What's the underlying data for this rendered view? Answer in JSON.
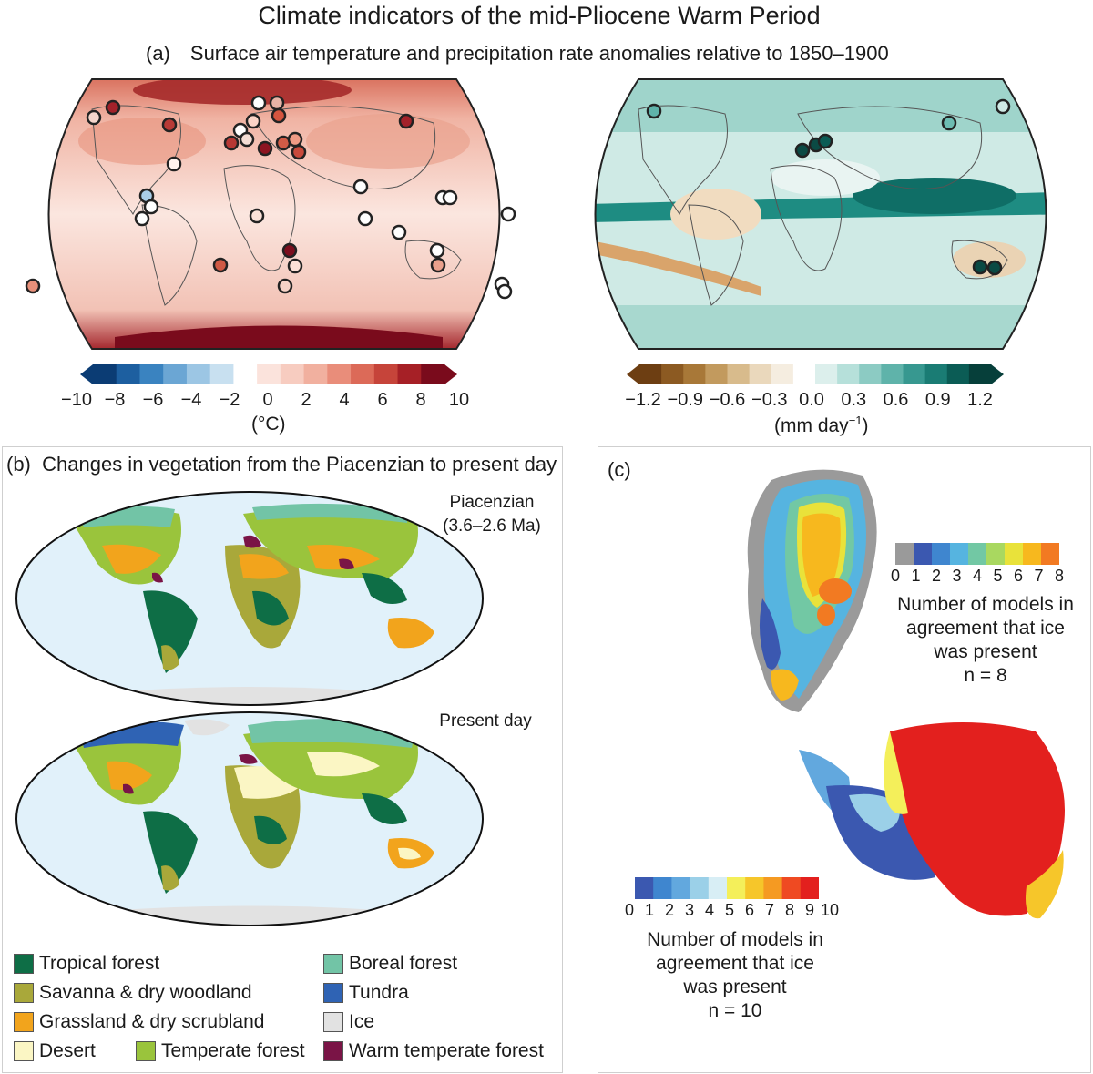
{
  "title": "Climate indicators of the mid-Pliocene Warm Period",
  "panel_a": {
    "letter": "(a)",
    "subtitle": "Surface air temperature and precipitation rate anomalies relative to 1850–1900",
    "temp_colorbar": {
      "ticks": [
        "−10",
        "−8",
        "−6",
        "−4",
        "−2",
        "0",
        "2",
        "4",
        "6",
        "8",
        "10"
      ],
      "unit": "(°C)",
      "colors": [
        "#0b3c74",
        "#1d5fa0",
        "#3a83c0",
        "#6ba6d4",
        "#9cc6e4",
        "#c8e0f0",
        "#ffffff",
        "#fbe3dc",
        "#f7ccc0",
        "#f1b09f",
        "#e98d7a",
        "#dc6a58",
        "#c6443a",
        "#a62026",
        "#7a0b1c"
      ]
    },
    "precip_colorbar": {
      "ticks": [
        "−1.2",
        "−0.9",
        "−0.6",
        "−0.3",
        "0.0",
        "0.3",
        "0.6",
        "0.9",
        "1.2"
      ],
      "unit_main": "(mm day",
      "unit_sup": "−1",
      "unit_end": ")",
      "colors": [
        "#6d3e12",
        "#8c5a22",
        "#a87838",
        "#c29a5e",
        "#d8bb8c",
        "#ead8bc",
        "#f5ede0",
        "#ffffff",
        "#dcefec",
        "#b6e0da",
        "#8ccbc3",
        "#5fb3aa",
        "#379890",
        "#1a7c74",
        "#0b5c55",
        "#063f3a"
      ]
    }
  },
  "panel_b": {
    "letter": "(b)",
    "title": "Changes in vegetation from the Piacenzian to present day",
    "map1_label_line1": "Piacenzian",
    "map1_label_line2": "(3.6–2.6 Ma)",
    "map2_label": "Present day",
    "legend": [
      {
        "label": "Tropical forest",
        "color": "#0e6e46"
      },
      {
        "label": "Savanna & dry woodland",
        "color": "#a9a83a"
      },
      {
        "label": "Grassland & dry scrubland",
        "color": "#f2a41c"
      },
      {
        "label": "Desert",
        "color": "#fbf6c4"
      },
      {
        "label": "Temperate forest",
        "color": "#9ac43c"
      },
      {
        "label": "Boreal forest",
        "color": "#72c4a6"
      },
      {
        "label": "Tundra",
        "color": "#2f63b4"
      },
      {
        "label": "Ice",
        "color": "#e2e2e2"
      },
      {
        "label": "Warm temperate forest",
        "color": "#7a1446"
      }
    ]
  },
  "panel_c": {
    "letter": "(c)",
    "greenland": {
      "ticks": [
        "0",
        "1",
        "2",
        "3",
        "4",
        "5",
        "6",
        "7",
        "8"
      ],
      "colors": [
        "#9a9a9a",
        "#3b58b0",
        "#3f86cf",
        "#56b4e0",
        "#72c8a4",
        "#a9d860",
        "#e9e23a",
        "#f7b81e",
        "#f27a22"
      ],
      "line1": "Number of models in",
      "line2": "agreement that ice",
      "line3": "was present",
      "line4": "n = 8"
    },
    "antarctica": {
      "ticks": [
        "0",
        "1",
        "2",
        "3",
        "4",
        "5",
        "6",
        "7",
        "8",
        "9",
        "10"
      ],
      "colors": [
        "#3b58b0",
        "#3f86cf",
        "#62a8de",
        "#9bd0e8",
        "#d8eef5",
        "#f4ef5a",
        "#f6c62a",
        "#f59a22",
        "#ef4a22",
        "#e3201e"
      ],
      "line1": "Number of models in",
      "line2": "agreement that ice",
      "line3": "was present",
      "line4": "n = 10"
    }
  }
}
